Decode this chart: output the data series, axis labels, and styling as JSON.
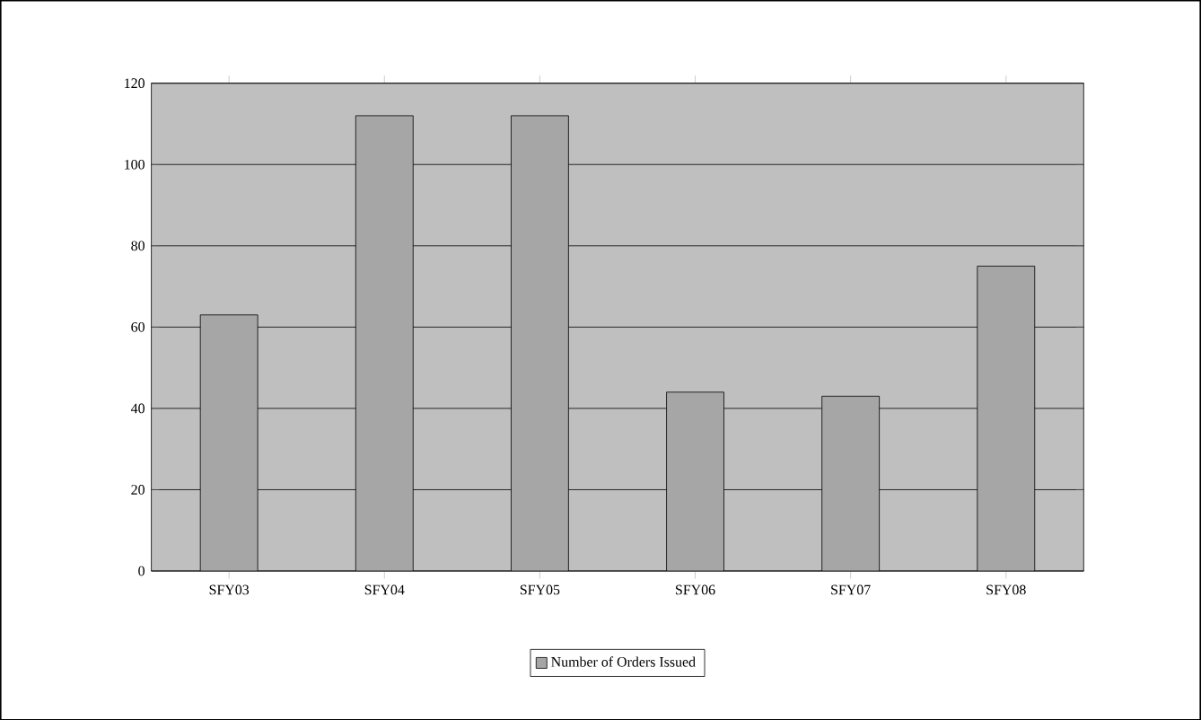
{
  "chart_data": {
    "type": "bar",
    "categories": [
      "SFY03",
      "SFY04",
      "SFY05",
      "SFY06",
      "SFY07",
      "SFY08"
    ],
    "series": [
      {
        "name": "Number of Orders Issued",
        "color": "#a6a6a6",
        "values": [
          63,
          112,
          112,
          44,
          43,
          75
        ]
      }
    ],
    "ylim": [
      0,
      120
    ],
    "yticks": [
      0,
      20,
      40,
      60,
      80,
      100,
      120
    ],
    "grid": "y",
    "legend": "bottom"
  }
}
